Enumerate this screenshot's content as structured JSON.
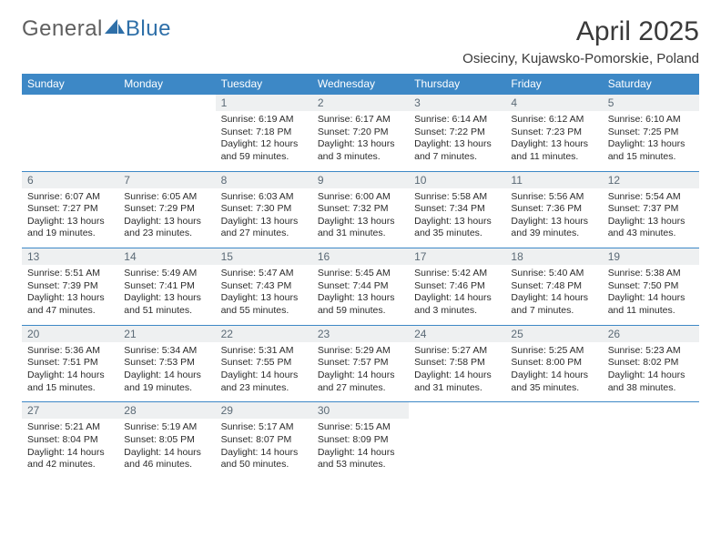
{
  "logo": {
    "text1": "General",
    "text2": "Blue"
  },
  "header": {
    "title": "April 2025",
    "location": "Osieciny, Kujawsko-Pomorskie, Poland"
  },
  "colors": {
    "brand_blue": "#3d88c6",
    "header_bg": "#3d88c6",
    "header_text": "#ffffff",
    "daynum_bg": "#eef0f1",
    "cell_border": "#3d88c6",
    "body_text": "#2b2b2b",
    "title_text": "#3a3a3a",
    "logo_text": "#5f5f5f"
  },
  "dayNames": [
    "Sunday",
    "Monday",
    "Tuesday",
    "Wednesday",
    "Thursday",
    "Friday",
    "Saturday"
  ],
  "weeks": [
    [
      null,
      null,
      {
        "n": "1",
        "sr": "Sunrise: 6:19 AM",
        "ss": "Sunset: 7:18 PM",
        "dl": "Daylight: 12 hours and 59 minutes."
      },
      {
        "n": "2",
        "sr": "Sunrise: 6:17 AM",
        "ss": "Sunset: 7:20 PM",
        "dl": "Daylight: 13 hours and 3 minutes."
      },
      {
        "n": "3",
        "sr": "Sunrise: 6:14 AM",
        "ss": "Sunset: 7:22 PM",
        "dl": "Daylight: 13 hours and 7 minutes."
      },
      {
        "n": "4",
        "sr": "Sunrise: 6:12 AM",
        "ss": "Sunset: 7:23 PM",
        "dl": "Daylight: 13 hours and 11 minutes."
      },
      {
        "n": "5",
        "sr": "Sunrise: 6:10 AM",
        "ss": "Sunset: 7:25 PM",
        "dl": "Daylight: 13 hours and 15 minutes."
      }
    ],
    [
      {
        "n": "6",
        "sr": "Sunrise: 6:07 AM",
        "ss": "Sunset: 7:27 PM",
        "dl": "Daylight: 13 hours and 19 minutes."
      },
      {
        "n": "7",
        "sr": "Sunrise: 6:05 AM",
        "ss": "Sunset: 7:29 PM",
        "dl": "Daylight: 13 hours and 23 minutes."
      },
      {
        "n": "8",
        "sr": "Sunrise: 6:03 AM",
        "ss": "Sunset: 7:30 PM",
        "dl": "Daylight: 13 hours and 27 minutes."
      },
      {
        "n": "9",
        "sr": "Sunrise: 6:00 AM",
        "ss": "Sunset: 7:32 PM",
        "dl": "Daylight: 13 hours and 31 minutes."
      },
      {
        "n": "10",
        "sr": "Sunrise: 5:58 AM",
        "ss": "Sunset: 7:34 PM",
        "dl": "Daylight: 13 hours and 35 minutes."
      },
      {
        "n": "11",
        "sr": "Sunrise: 5:56 AM",
        "ss": "Sunset: 7:36 PM",
        "dl": "Daylight: 13 hours and 39 minutes."
      },
      {
        "n": "12",
        "sr": "Sunrise: 5:54 AM",
        "ss": "Sunset: 7:37 PM",
        "dl": "Daylight: 13 hours and 43 minutes."
      }
    ],
    [
      {
        "n": "13",
        "sr": "Sunrise: 5:51 AM",
        "ss": "Sunset: 7:39 PM",
        "dl": "Daylight: 13 hours and 47 minutes."
      },
      {
        "n": "14",
        "sr": "Sunrise: 5:49 AM",
        "ss": "Sunset: 7:41 PM",
        "dl": "Daylight: 13 hours and 51 minutes."
      },
      {
        "n": "15",
        "sr": "Sunrise: 5:47 AM",
        "ss": "Sunset: 7:43 PM",
        "dl": "Daylight: 13 hours and 55 minutes."
      },
      {
        "n": "16",
        "sr": "Sunrise: 5:45 AM",
        "ss": "Sunset: 7:44 PM",
        "dl": "Daylight: 13 hours and 59 minutes."
      },
      {
        "n": "17",
        "sr": "Sunrise: 5:42 AM",
        "ss": "Sunset: 7:46 PM",
        "dl": "Daylight: 14 hours and 3 minutes."
      },
      {
        "n": "18",
        "sr": "Sunrise: 5:40 AM",
        "ss": "Sunset: 7:48 PM",
        "dl": "Daylight: 14 hours and 7 minutes."
      },
      {
        "n": "19",
        "sr": "Sunrise: 5:38 AM",
        "ss": "Sunset: 7:50 PM",
        "dl": "Daylight: 14 hours and 11 minutes."
      }
    ],
    [
      {
        "n": "20",
        "sr": "Sunrise: 5:36 AM",
        "ss": "Sunset: 7:51 PM",
        "dl": "Daylight: 14 hours and 15 minutes."
      },
      {
        "n": "21",
        "sr": "Sunrise: 5:34 AM",
        "ss": "Sunset: 7:53 PM",
        "dl": "Daylight: 14 hours and 19 minutes."
      },
      {
        "n": "22",
        "sr": "Sunrise: 5:31 AM",
        "ss": "Sunset: 7:55 PM",
        "dl": "Daylight: 14 hours and 23 minutes."
      },
      {
        "n": "23",
        "sr": "Sunrise: 5:29 AM",
        "ss": "Sunset: 7:57 PM",
        "dl": "Daylight: 14 hours and 27 minutes."
      },
      {
        "n": "24",
        "sr": "Sunrise: 5:27 AM",
        "ss": "Sunset: 7:58 PM",
        "dl": "Daylight: 14 hours and 31 minutes."
      },
      {
        "n": "25",
        "sr": "Sunrise: 5:25 AM",
        "ss": "Sunset: 8:00 PM",
        "dl": "Daylight: 14 hours and 35 minutes."
      },
      {
        "n": "26",
        "sr": "Sunrise: 5:23 AM",
        "ss": "Sunset: 8:02 PM",
        "dl": "Daylight: 14 hours and 38 minutes."
      }
    ],
    [
      {
        "n": "27",
        "sr": "Sunrise: 5:21 AM",
        "ss": "Sunset: 8:04 PM",
        "dl": "Daylight: 14 hours and 42 minutes."
      },
      {
        "n": "28",
        "sr": "Sunrise: 5:19 AM",
        "ss": "Sunset: 8:05 PM",
        "dl": "Daylight: 14 hours and 46 minutes."
      },
      {
        "n": "29",
        "sr": "Sunrise: 5:17 AM",
        "ss": "Sunset: 8:07 PM",
        "dl": "Daylight: 14 hours and 50 minutes."
      },
      {
        "n": "30",
        "sr": "Sunrise: 5:15 AM",
        "ss": "Sunset: 8:09 PM",
        "dl": "Daylight: 14 hours and 53 minutes."
      },
      null,
      null,
      null
    ]
  ]
}
